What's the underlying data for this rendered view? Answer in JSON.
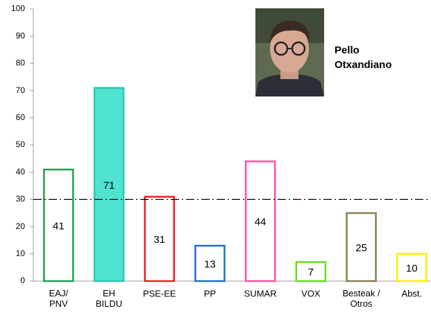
{
  "chart_data": {
    "type": "bar",
    "categories": [
      "EAJ/\nPNV",
      "EH\nBILDU",
      "PSE-EE",
      "PP",
      "SUMAR",
      "VOX",
      "Besteak /\nOtros",
      "Abst."
    ],
    "values": [
      41,
      71,
      31,
      13,
      44,
      7,
      25,
      10
    ],
    "colors": [
      "#1fa052",
      "#2cc7b4",
      "#ee1c24",
      "#1b6ec2",
      "#ff4fa3",
      "#66dd22",
      "#8a7d50",
      "#ffee00"
    ],
    "fills": [
      "#ffffff",
      "#4fe3d0",
      "#ffffff",
      "#ffffff",
      "#ffffff",
      "#ffffff",
      "#ffffff",
      "#ffffff"
    ],
    "ylim": [
      0,
      100
    ],
    "yticks": [
      0,
      10,
      20,
      30,
      40,
      50,
      60,
      70,
      80,
      90,
      100
    ],
    "grid": false,
    "reference_line": 30,
    "annotation": [
      "Pello",
      "Otxandiano"
    ]
  }
}
